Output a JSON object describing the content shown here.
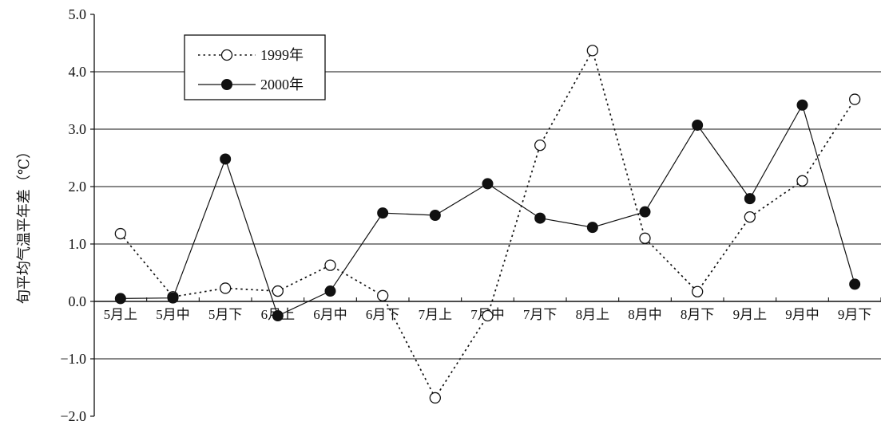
{
  "chart_data": {
    "type": "line",
    "ylabel": "旬平均气温平年差（℃）",
    "ylim": [
      -2.0,
      5.0
    ],
    "yticks": [
      5.0,
      4.0,
      3.0,
      2.0,
      1.0,
      0.0,
      -1.0,
      -2.0
    ],
    "ytick_labels": [
      "5.0",
      "4.0",
      "3.0",
      "2.0",
      "1.0",
      "0.0",
      "−1.0",
      "−2.0"
    ],
    "grid": true,
    "legend_position": "top-left",
    "categories": [
      "5月上",
      "5月中",
      "5月下",
      "6月上",
      "6月中",
      "6月下",
      "7月上",
      "7月中",
      "7月下",
      "8月上",
      "8月中",
      "8月下",
      "9月上",
      "9月中",
      "9月下"
    ],
    "series": [
      {
        "name": "1999年",
        "style": "dotted line, open circle markers",
        "values": [
          1.18,
          0.08,
          0.23,
          0.18,
          0.63,
          0.1,
          -1.68,
          -0.25,
          2.72,
          4.37,
          1.1,
          0.17,
          1.47,
          2.1,
          3.52
        ]
      },
      {
        "name": "2000年",
        "style": "solid line, filled circle markers",
        "values": [
          0.05,
          0.06,
          2.48,
          -0.25,
          0.18,
          1.54,
          1.5,
          2.05,
          1.45,
          1.29,
          1.56,
          3.07,
          1.79,
          3.42,
          0.3
        ]
      }
    ]
  }
}
